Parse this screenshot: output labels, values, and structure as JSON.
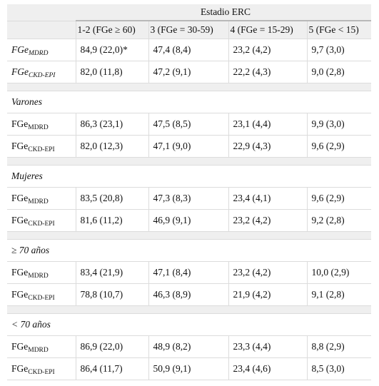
{
  "header": {
    "group": "Estadio ERC",
    "columns": [
      "1-2 (FGe ≥ 60)",
      "3 (FGe = 30-59)",
      "4 (FGe = 15-29)",
      "5 (FGe < 15)"
    ]
  },
  "overall": [
    {
      "label": "FGe",
      "sub": "MDRD",
      "values": [
        "84,9 (22,0)*",
        "47,4 (8,4)",
        "23,2 (4,2)",
        "9,7 (3,0)"
      ]
    },
    {
      "label": "FGe",
      "sub": "CKD-EPI",
      "values": [
        "82,0 (11,8)",
        "47,2 (9,1)",
        "22,2 (4,3)",
        "9,0 (2,8)"
      ]
    }
  ],
  "groups": [
    {
      "title": "Varones",
      "rows": [
        {
          "label": "FGe",
          "sub": "MDRD",
          "values": [
            "86,3 (23,1)",
            "47,5 (8,5)",
            "23,1 (4,4)",
            "9,9 (3,0)"
          ]
        },
        {
          "label": "FGe",
          "sub": "CKD-EPI",
          "values": [
            "82,0 (12,3)",
            "47,1 (9,0)",
            "22,9 (4,3)",
            "9,6 (2,9)"
          ]
        }
      ]
    },
    {
      "title": "Mujeres",
      "rows": [
        {
          "label": "FGe",
          "sub": "MDRD",
          "values": [
            "83,5 (20,8)",
            "47,3 (8,3)",
            "23,4 (4,1)",
            "9,6 (2,9)"
          ]
        },
        {
          "label": "FGe",
          "sub": "CKD-EPI",
          "values": [
            "81,6 (11,2)",
            "46,9 (9,1)",
            "23,2 (4,2)",
            "9,2 (2,8)"
          ]
        }
      ]
    },
    {
      "title": "≥ 70 años",
      "rows": [
        {
          "label": "FGe",
          "sub": "MDRD",
          "values": [
            "83,4 (21,9)",
            "47,1 (8,4)",
            "23,2 (4,2)",
            "10,0 (2,9)"
          ]
        },
        {
          "label": "FGe",
          "sub": "CKD-EPI",
          "values": [
            "78,8 (10,7)",
            "46,3 (8,9)",
            "21,9 (4,2)",
            "9,1 (2,8)"
          ]
        }
      ]
    },
    {
      "title": "< 70 años",
      "rows": [
        {
          "label": "FGe",
          "sub": "MDRD",
          "values": [
            "86,9 (22,0)",
            "48,9 (8,2)",
            "23,3 (4,4)",
            "8,8 (2,9)"
          ]
        },
        {
          "label": "FGe",
          "sub": "CKD-EPI",
          "values": [
            "86,4 (11,7)",
            "50,9 (9,1)",
            "23,4 (4,6)",
            "8,5 (3,0)"
          ]
        }
      ]
    }
  ]
}
